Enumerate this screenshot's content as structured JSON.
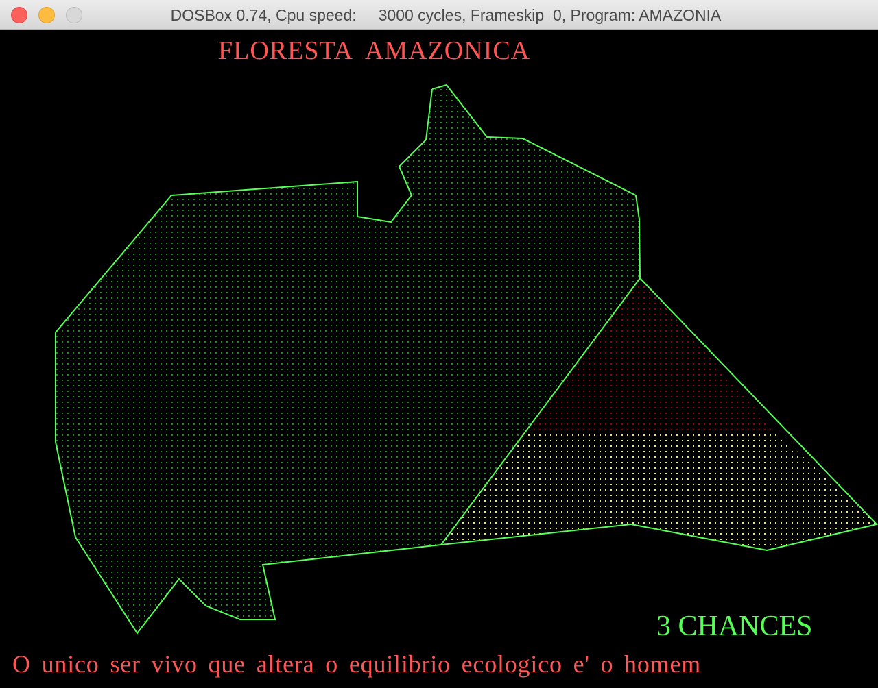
{
  "window": {
    "title": "DOSBox 0.74, Cpu speed:     3000 cycles, Frameskip  0, Program: AMAZONIA"
  },
  "game": {
    "heading": "FLORESTA  AMAZONICA",
    "chances": "3 CHANCES",
    "message": "O unico ser vivo que altera o equilibrio ecologico e' o homem"
  },
  "colors": {
    "outline": "#55ff55",
    "forest_fill": "#1e8a1e",
    "burned_fill": "#aa0000",
    "cleared_fill": "#ffff55",
    "text": "#ff5555"
  }
}
